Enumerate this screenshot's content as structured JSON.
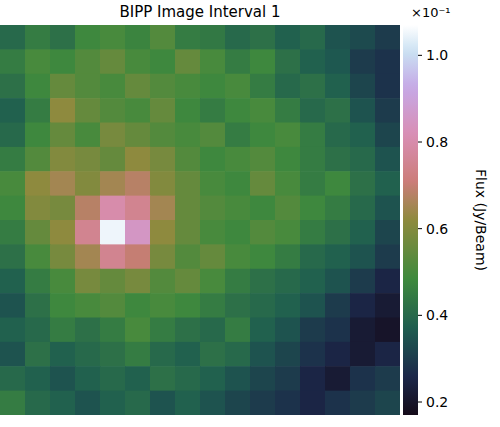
{
  "chart_data": {
    "type": "heatmap",
    "title": "BIPP Image Interval 1",
    "tick_labels": false,
    "cells": [
      [
        0.4,
        0.45,
        0.42,
        0.48,
        0.5,
        0.47,
        0.52,
        0.45,
        0.44,
        0.4,
        0.42,
        0.38,
        0.4,
        0.35,
        0.33,
        0.3
      ],
      [
        0.45,
        0.5,
        0.48,
        0.52,
        0.55,
        0.5,
        0.48,
        0.55,
        0.5,
        0.45,
        0.48,
        0.42,
        0.38,
        0.36,
        0.3,
        0.28
      ],
      [
        0.42,
        0.48,
        0.55,
        0.52,
        0.5,
        0.55,
        0.52,
        0.5,
        0.48,
        0.5,
        0.45,
        0.4,
        0.42,
        0.38,
        0.32,
        0.28
      ],
      [
        0.38,
        0.45,
        0.62,
        0.55,
        0.52,
        0.5,
        0.55,
        0.48,
        0.45,
        0.48,
        0.5,
        0.45,
        0.4,
        0.42,
        0.35,
        0.3
      ],
      [
        0.4,
        0.48,
        0.55,
        0.5,
        0.58,
        0.55,
        0.52,
        0.5,
        0.52,
        0.45,
        0.48,
        0.5,
        0.45,
        0.4,
        0.38,
        0.32
      ],
      [
        0.45,
        0.52,
        0.6,
        0.58,
        0.55,
        0.62,
        0.58,
        0.52,
        0.48,
        0.5,
        0.52,
        0.48,
        0.45,
        0.42,
        0.4,
        0.35
      ],
      [
        0.5,
        0.62,
        0.65,
        0.6,
        0.65,
        0.68,
        0.6,
        0.55,
        0.5,
        0.48,
        0.55,
        0.5,
        0.45,
        0.48,
        0.42,
        0.38
      ],
      [
        0.48,
        0.6,
        0.58,
        0.68,
        0.8,
        0.75,
        0.65,
        0.55,
        0.52,
        0.5,
        0.48,
        0.52,
        0.48,
        0.45,
        0.4,
        0.35
      ],
      [
        0.45,
        0.55,
        0.62,
        0.75,
        1.05,
        0.85,
        0.62,
        0.55,
        0.5,
        0.48,
        0.52,
        0.5,
        0.45,
        0.42,
        0.38,
        0.32
      ],
      [
        0.42,
        0.5,
        0.58,
        0.65,
        0.75,
        0.7,
        0.58,
        0.52,
        0.55,
        0.5,
        0.48,
        0.45,
        0.4,
        0.38,
        0.35,
        0.3
      ],
      [
        0.38,
        0.45,
        0.5,
        0.58,
        0.55,
        0.58,
        0.52,
        0.55,
        0.5,
        0.45,
        0.42,
        0.4,
        0.38,
        0.35,
        0.3,
        0.25
      ],
      [
        0.35,
        0.42,
        0.48,
        0.5,
        0.52,
        0.48,
        0.5,
        0.48,
        0.45,
        0.42,
        0.4,
        0.38,
        0.35,
        0.3,
        0.25,
        0.22
      ],
      [
        0.38,
        0.4,
        0.45,
        0.42,
        0.45,
        0.5,
        0.45,
        0.42,
        0.4,
        0.45,
        0.38,
        0.35,
        0.3,
        0.28,
        0.22,
        0.2
      ],
      [
        0.35,
        0.42,
        0.38,
        0.4,
        0.42,
        0.45,
        0.4,
        0.38,
        0.42,
        0.4,
        0.35,
        0.32,
        0.28,
        0.25,
        0.22,
        0.25
      ],
      [
        0.4,
        0.38,
        0.35,
        0.38,
        0.4,
        0.38,
        0.42,
        0.4,
        0.38,
        0.35,
        0.32,
        0.3,
        0.25,
        0.22,
        0.28,
        0.3
      ],
      [
        0.45,
        0.4,
        0.38,
        0.35,
        0.38,
        0.4,
        0.35,
        0.38,
        0.35,
        0.32,
        0.3,
        0.28,
        0.25,
        0.28,
        0.3,
        0.32
      ]
    ],
    "colorbar": {
      "label": "Flux (Jy/Beam)",
      "range": [
        0.17,
        1.07
      ],
      "ticks": [
        0.2,
        0.4,
        0.6,
        0.8,
        {
          "value": 1.0,
          "label": "1.0"
        }
      ],
      "offset_text": "×10⁻¹"
    }
  }
}
